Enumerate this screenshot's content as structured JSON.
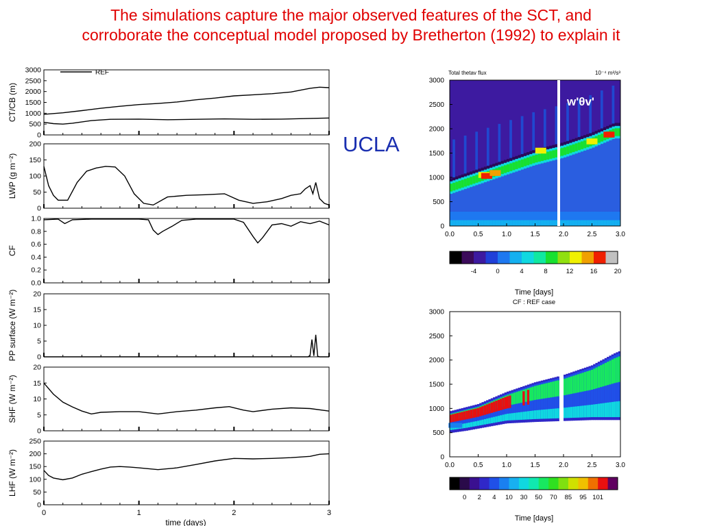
{
  "title": {
    "line1": "The simulations capture the major observed features of the SCT, and",
    "line2": "corroborate the conceptual model proposed by Bretherton (1992) to explain it"
  },
  "ucla_label": "UCLA",
  "colors": {
    "title": "#e00000",
    "ucla": "#1a2fb0",
    "line": "#000000",
    "marker": "#ffffff"
  },
  "left_panel": {
    "legend": "REF",
    "xlabel": "time (days)",
    "xticks": [
      "0",
      "1",
      "2",
      "3"
    ],
    "xlim": [
      0,
      3
    ],
    "subplots": [
      {
        "ylabel": "CT/CB (m)",
        "ylim": [
          0,
          3000
        ],
        "yticks": [
          "0",
          "500",
          "1000",
          "1500",
          "2000",
          "2500",
          "3000"
        ]
      },
      {
        "ylabel": "LWP (g m⁻²)",
        "ylim": [
          0,
          200
        ],
        "yticks": [
          "0",
          "50",
          "100",
          "150",
          "200"
        ]
      },
      {
        "ylabel": "CF",
        "ylim": [
          0,
          1
        ],
        "yticks": [
          "0.0",
          "0.2",
          "0.4",
          "0.6",
          "0.8",
          "1.0"
        ]
      },
      {
        "ylabel": "PP surface (W m⁻²)",
        "ylim": [
          0,
          20
        ],
        "yticks": [
          "0",
          "5",
          "10",
          "15",
          "20"
        ]
      },
      {
        "ylabel": "SHF (W m⁻²)",
        "ylim": [
          0,
          20
        ],
        "yticks": [
          "0",
          "5",
          "10",
          "15",
          "20"
        ]
      },
      {
        "ylabel": "LHF (W m⁻²)",
        "ylim": [
          0,
          250
        ],
        "yticks": [
          "0",
          "50",
          "100",
          "150",
          "200",
          "250"
        ]
      }
    ]
  },
  "flux_panel": {
    "header_left": "Total thetav flux",
    "header_right": "10⁻⁴ m²/s³",
    "annotation": "w'θv'",
    "yticks": [
      "0",
      "500",
      "1000",
      "1500",
      "2000",
      "2500",
      "3000"
    ],
    "xticks": [
      "0.0",
      "0.5",
      "1.0",
      "1.5",
      "2.0",
      "2.5",
      "3.0"
    ],
    "colorbar_labels": [
      "-4",
      "0",
      "4",
      "8",
      "12",
      "16",
      "20"
    ],
    "colorbar_colors": [
      "#000000",
      "#3b0a5a",
      "#3d1aa0",
      "#2040d8",
      "#1e78f0",
      "#14b0f0",
      "#10d8e0",
      "#10e8a0",
      "#18e030",
      "#90e010",
      "#f0f000",
      "#f0a000",
      "#f02000",
      "#c0c0c0"
    ],
    "xlabel": "Time [days]"
  },
  "cf_panel": {
    "header": "CF : REF case",
    "yticks": [
      "0",
      "500",
      "1000",
      "1500",
      "2000",
      "2500",
      "3000"
    ],
    "xticks": [
      "0.0",
      "0.5",
      "1.0",
      "1.5",
      "2.0",
      "2.5",
      "3.0"
    ],
    "colorbar_labels": [
      "0",
      "2",
      "4",
      "10",
      "30",
      "50",
      "70",
      "85",
      "95",
      "101"
    ],
    "colorbar_colors": [
      "#000000",
      "#2a0a4a",
      "#3a1090",
      "#3028c8",
      "#2050e8",
      "#1a80f0",
      "#18b0f0",
      "#10d8e0",
      "#10e8b0",
      "#18e860",
      "#30e020",
      "#80e010",
      "#d0e000",
      "#f0c000",
      "#f07000",
      "#e81010",
      "#600060"
    ],
    "xlabel": "Time [days]"
  },
  "chart_data": [
    {
      "type": "line",
      "title": "CT/CB (m)",
      "xlabel": "time (days)",
      "ylabel": "CT/CB (m)",
      "xlim": [
        0,
        3
      ],
      "ylim": [
        0,
        3000
      ],
      "legend": "top-left",
      "series": [
        {
          "name": "REF",
          "x": [
            0,
            0.2,
            0.4,
            0.6,
            0.8,
            1.0,
            1.2,
            1.4,
            1.6,
            1.8,
            2.0,
            2.2,
            2.4,
            2.6,
            2.8,
            2.9,
            3.0
          ],
          "values": [
            950,
            1020,
            1120,
            1230,
            1320,
            1400,
            1450,
            1520,
            1620,
            1700,
            1800,
            1850,
            1900,
            1980,
            2150,
            2200,
            2180
          ]
        },
        {
          "x": [
            0,
            0.1,
            0.2,
            0.3,
            0.5,
            0.7,
            1.0,
            1.3,
            1.6,
            1.9,
            2.2,
            2.5,
            2.8,
            3.0
          ],
          "values": [
            580,
            520,
            500,
            540,
            660,
            720,
            730,
            700,
            720,
            740,
            720,
            730,
            760,
            780
          ]
        }
      ]
    },
    {
      "type": "line",
      "xlabel": "time (days)",
      "ylabel": "LWP (g m⁻²)",
      "xlim": [
        0,
        3
      ],
      "ylim": [
        0,
        200
      ],
      "series": [
        {
          "x": [
            0,
            0.05,
            0.1,
            0.15,
            0.25,
            0.35,
            0.45,
            0.55,
            0.65,
            0.75,
            0.85,
            0.95,
            1.05,
            1.15,
            1.3,
            1.5,
            1.7,
            1.9,
            2.05,
            2.2,
            2.35,
            2.5,
            2.6,
            2.7,
            2.75,
            2.8,
            2.83,
            2.86,
            2.9,
            2.95,
            3.0
          ],
          "values": [
            130,
            70,
            40,
            25,
            25,
            80,
            115,
            125,
            130,
            128,
            100,
            45,
            15,
            10,
            35,
            40,
            42,
            45,
            25,
            15,
            20,
            30,
            40,
            45,
            60,
            70,
            45,
            80,
            30,
            15,
            10
          ]
        }
      ]
    },
    {
      "type": "line",
      "xlabel": "time (days)",
      "ylabel": "CF",
      "xlim": [
        0,
        3
      ],
      "ylim": [
        0,
        1
      ],
      "series": [
        {
          "x": [
            0,
            0.15,
            0.22,
            0.3,
            0.5,
            0.8,
            1.0,
            1.1,
            1.15,
            1.2,
            1.25,
            1.35,
            1.45,
            1.6,
            1.8,
            2.0,
            2.1,
            2.2,
            2.25,
            2.3,
            2.4,
            2.5,
            2.6,
            2.7,
            2.8,
            2.9,
            3.0
          ],
          "values": [
            0.98,
            0.99,
            0.92,
            0.98,
            0.99,
            0.99,
            0.99,
            0.98,
            0.82,
            0.75,
            0.8,
            0.88,
            0.97,
            0.99,
            0.99,
            0.99,
            0.94,
            0.72,
            0.62,
            0.7,
            0.9,
            0.92,
            0.88,
            0.95,
            0.92,
            0.96,
            0.9
          ]
        }
      ]
    },
    {
      "type": "line",
      "xlabel": "time (days)",
      "ylabel": "PP surface (W m⁻²)",
      "xlim": [
        0,
        3
      ],
      "ylim": [
        0,
        20
      ],
      "series": [
        {
          "x": [
            0,
            2.7,
            2.78,
            2.8,
            2.82,
            2.84,
            2.86,
            2.88,
            2.9,
            3.0
          ],
          "values": [
            0,
            0,
            0,
            0.5,
            5.5,
            0.3,
            7,
            0.2,
            0,
            0
          ]
        }
      ]
    },
    {
      "type": "line",
      "xlabel": "time (days)",
      "ylabel": "SHF (W m⁻²)",
      "xlim": [
        0,
        3
      ],
      "ylim": [
        0,
        20
      ],
      "series": [
        {
          "x": [
            0,
            0.1,
            0.2,
            0.3,
            0.4,
            0.5,
            0.6,
            0.8,
            1.0,
            1.2,
            1.4,
            1.6,
            1.8,
            1.95,
            2.1,
            2.2,
            2.4,
            2.6,
            2.8,
            3.0
          ],
          "values": [
            15,
            11.5,
            9,
            7.5,
            6.2,
            5.3,
            5.8,
            6,
            6,
            5.3,
            6,
            6.5,
            7.2,
            7.6,
            6.5,
            6,
            6.8,
            7.2,
            7,
            6.2
          ]
        }
      ]
    },
    {
      "type": "line",
      "xlabel": "time (days)",
      "ylabel": "LHF (W m⁻²)",
      "xlim": [
        0,
        3
      ],
      "ylim": [
        0,
        250
      ],
      "series": [
        {
          "x": [
            0,
            0.05,
            0.1,
            0.2,
            0.3,
            0.4,
            0.5,
            0.6,
            0.7,
            0.8,
            0.9,
            1.0,
            1.2,
            1.4,
            1.6,
            1.8,
            2.0,
            2.2,
            2.4,
            2.6,
            2.8,
            2.9,
            3.0
          ],
          "values": [
            135,
            115,
            105,
            98,
            105,
            120,
            130,
            140,
            148,
            150,
            148,
            145,
            138,
            145,
            158,
            172,
            182,
            180,
            182,
            185,
            190,
            198,
            200
          ]
        }
      ]
    },
    {
      "type": "heatmap",
      "xlabel": "Time [days]",
      "xlim": [
        0,
        3
      ],
      "ylim": [
        0,
        3000
      ],
      "note": "Total thetav flux",
      "units": "10⁻⁴ m²/s³",
      "colorbar": [
        -4,
        0,
        4,
        8,
        12,
        16,
        20
      ],
      "inversion_height": {
        "x": [
          0,
          0.5,
          1.0,
          1.5,
          2.0,
          2.5,
          2.9,
          3.0
        ],
        "values": [
          850,
          1050,
          1250,
          1450,
          1600,
          1800,
          2000,
          2000
        ]
      }
    },
    {
      "type": "heatmap",
      "xlabel": "Time [days]",
      "xlim": [
        0,
        3
      ],
      "ylim": [
        0,
        3000
      ],
      "note": "CF : REF case",
      "colorbar": [
        0,
        2,
        4,
        10,
        30,
        50,
        70,
        85,
        95,
        101
      ],
      "cloud_top": {
        "x": [
          0,
          0.5,
          1.0,
          1.5,
          2.0,
          2.5,
          2.9,
          3.0
        ],
        "values": [
          900,
          1050,
          1300,
          1500,
          1650,
          1850,
          2100,
          2150
        ]
      },
      "cloud_base": {
        "x": [
          0,
          0.3,
          1.0,
          1.5,
          2.0,
          2.5,
          3.0
        ],
        "values": [
          550,
          600,
          750,
          780,
          800,
          820,
          820
        ]
      }
    }
  ]
}
